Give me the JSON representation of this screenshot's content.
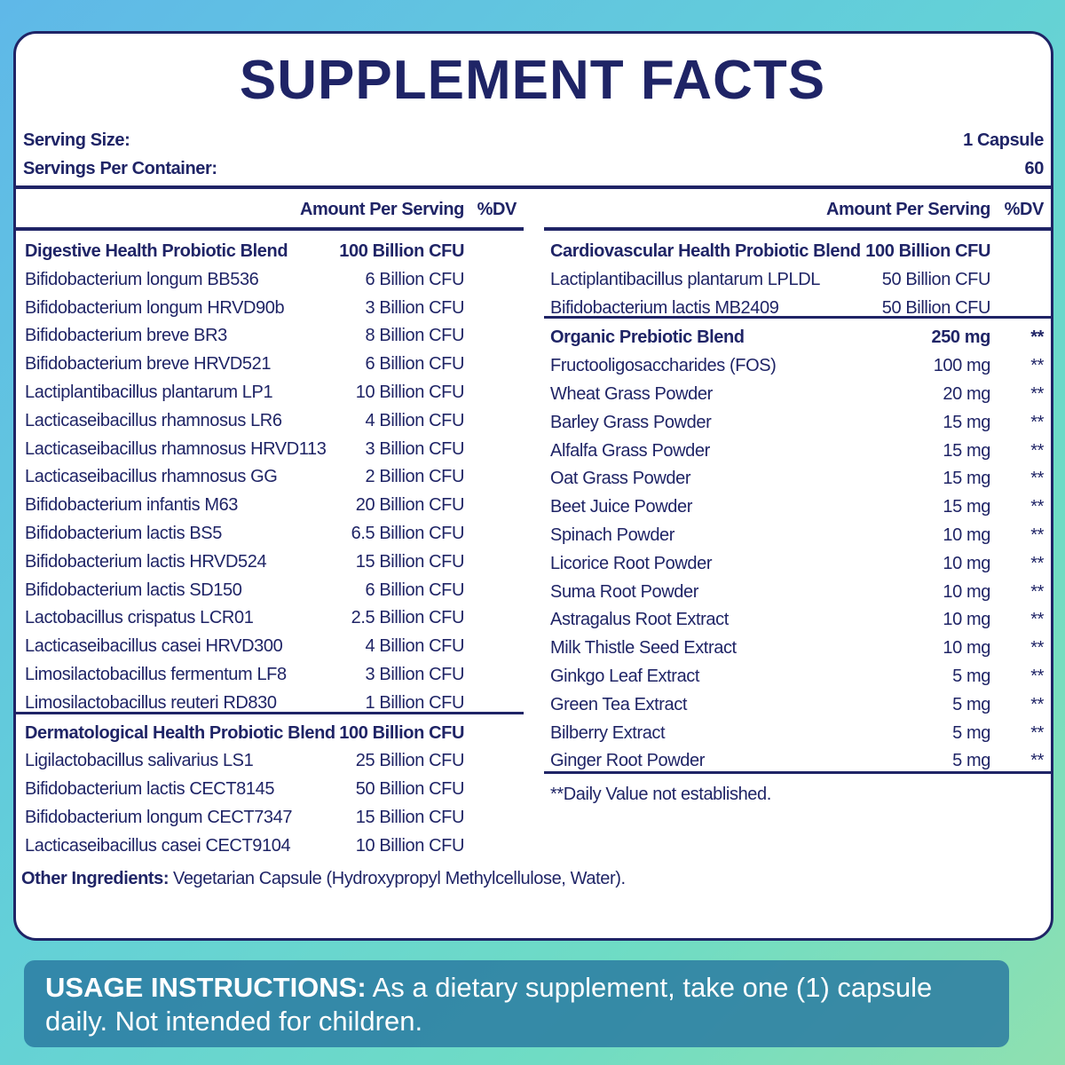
{
  "title": "SUPPLEMENT FACTS",
  "serving": {
    "size_label": "Serving Size:",
    "size": "1 Capsule",
    "per_container_label": "Servings Per Container:",
    "per_container": "60"
  },
  "left": {
    "header": {
      "amount": "Amount Per Serving",
      "dv": "%DV"
    },
    "blends": [
      {
        "name": "Digestive Health Probiotic Blend",
        "amount": "100 Billion CFU",
        "rows": [
          {
            "name": "Bifidobacterium longum BB536",
            "amount": "6 Billion CFU"
          },
          {
            "name": "Bifidobacterium longum  HRVD90b",
            "amount": "3 Billion CFU"
          },
          {
            "name": "Bifidobacterium breve BR3",
            "amount": "8 Billion CFU"
          },
          {
            "name": "Bifidobacterium breve HRVD521",
            "amount": "6 Billion CFU"
          },
          {
            "name": "Lactiplantibacillus plantarum LP1",
            "amount": "10 Billion CFU"
          },
          {
            "name": "Lacticaseibacillus rhamnosus  LR6",
            "amount": "4 Billion CFU"
          },
          {
            "name": "Lacticaseibacillus rhamnosus HRVD113",
            "amount": "3 Billion CFU"
          },
          {
            "name": "Lacticaseibacillus rhamnosus GG",
            "amount": "2 Billion CFU"
          },
          {
            "name": "Bifidobacterium infantis M63",
            "amount": "20 Billion CFU"
          },
          {
            "name": "Bifidobacterium lactis  BS5",
            "amount": "6.5 Billion CFU"
          },
          {
            "name": "Bifidobacterium lactis  HRVD524",
            "amount": "15 Billion CFU"
          },
          {
            "name": "Bifidobacterium lactis SD150",
            "amount": "6 Billion CFU"
          },
          {
            "name": "Lactobacillus crispatus LCR01",
            "amount": "2.5 Billion CFU"
          },
          {
            "name": "Lacticaseibacillus casei HRVD300",
            "amount": "4 Billion CFU"
          },
          {
            "name": "Limosilactobacillus fermentum LF8",
            "amount": "3 Billion CFU"
          },
          {
            "name": "Limosilactobacillus reuteri RD830",
            "amount": "1 Billion CFU"
          }
        ]
      },
      {
        "name": "Dermatological Health Probiotic Blend",
        "amount": "100 Billion CFU",
        "rows": [
          {
            "name": "Ligilactobacillus salivarius LS1",
            "amount": "25 Billion CFU"
          },
          {
            "name": "Bifidobacterium lactis CECT8145",
            "amount": "50 Billion CFU"
          },
          {
            "name": "Bifidobacterium longum CECT7347",
            "amount": "15 Billion CFU"
          },
          {
            "name": "Lacticaseibacillus casei CECT9104",
            "amount": "10 Billion CFU"
          }
        ]
      }
    ]
  },
  "right": {
    "header": {
      "amount": "Amount Per Serving",
      "dv": "%DV"
    },
    "blends": [
      {
        "name": "Cardiovascular Health Probiotic Blend",
        "amount": "100 Billion CFU",
        "rows": [
          {
            "name": "Lactiplantibacillus plantarum LPLDL",
            "amount": "50 Billion CFU"
          },
          {
            "name": "Bifidobacterium lactis MB2409",
            "amount": "50 Billion CFU"
          }
        ]
      },
      {
        "name": "Organic Prebiotic Blend",
        "amount": "250 mg",
        "dv": "**",
        "rows": [
          {
            "name": "Fructooligosaccharides (FOS)",
            "amount": "100 mg",
            "dv": "**"
          },
          {
            "name": "Wheat Grass Powder",
            "amount": "20 mg",
            "dv": "**"
          },
          {
            "name": "Barley Grass Powder",
            "amount": "15 mg",
            "dv": "**"
          },
          {
            "name": "Alfalfa Grass Powder",
            "amount": "15 mg",
            "dv": "**"
          },
          {
            "name": "Oat Grass Powder",
            "amount": "15 mg",
            "dv": "**"
          },
          {
            "name": "Beet Juice Powder",
            "amount": "15 mg",
            "dv": "**"
          },
          {
            "name": "Spinach Powder",
            "amount": "10 mg",
            "dv": "**"
          },
          {
            "name": "Licorice Root Powder",
            "amount": "10 mg",
            "dv": "**"
          },
          {
            "name": "Suma Root Powder",
            "amount": "10 mg",
            "dv": "**"
          },
          {
            "name": "Astragalus Root Extract",
            "amount": "10 mg",
            "dv": "**"
          },
          {
            "name": "Milk Thistle Seed Extract",
            "amount": "10 mg",
            "dv": "**"
          },
          {
            "name": "Ginkgo Leaf Extract",
            "amount": "5 mg",
            "dv": "**"
          },
          {
            "name": "Green Tea Extract",
            "amount": "5 mg",
            "dv": "**"
          },
          {
            "name": "Bilberry Extract",
            "amount": "5 mg",
            "dv": "**"
          },
          {
            "name": "Ginger Root Powder",
            "amount": "5 mg",
            "dv": "**"
          }
        ]
      }
    ],
    "footnote": "**Daily Value not established."
  },
  "other_ingredients": {
    "label": "Other Ingredients:",
    "text": "Vegetarian Capsule (Hydroxypropyl Methylcellulose, Water)."
  },
  "usage": {
    "label": "USAGE INSTRUCTIONS:",
    "text": "As a dietary supplement, take one (1) capsule daily. Not intended for children."
  }
}
